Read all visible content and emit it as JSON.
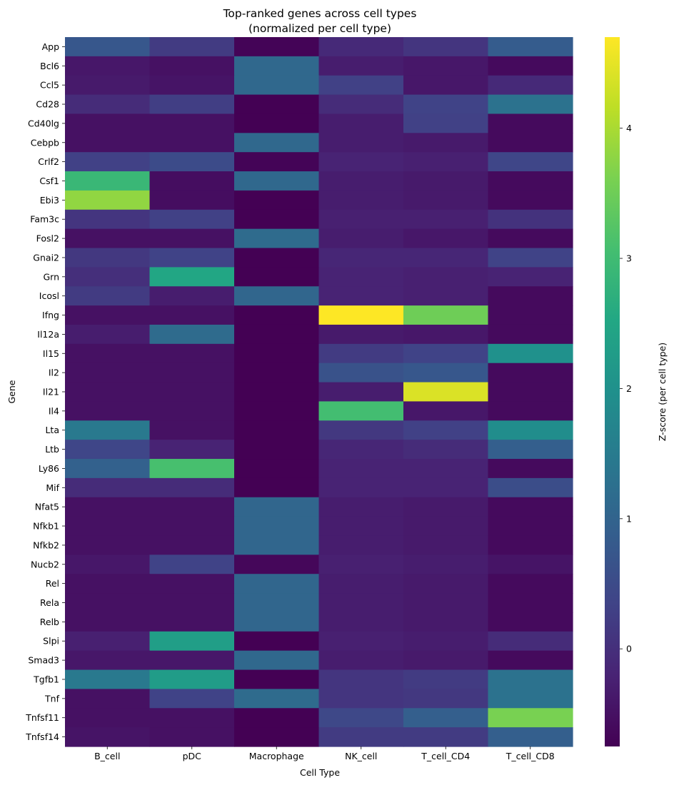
{
  "chart_data": {
    "type": "heatmap",
    "title": "Top-ranked genes across cell types",
    "subtitle": "(normalized per cell type)",
    "xlabel": "Cell Type",
    "ylabel": "Gene",
    "colorbar_label": "Z-score (per cell type)",
    "colormap": "viridis",
    "color_range": [
      -0.75,
      4.7
    ],
    "colorbar_ticks": [
      0,
      1,
      2,
      3,
      4
    ],
    "x_categories": [
      "B_cell",
      "pDC",
      "Macrophage",
      "NK_cell",
      "T_cell_CD4",
      "T_cell_CD8"
    ],
    "y_categories": [
      "App",
      "Bcl6",
      "Ccl5",
      "Cd28",
      "Cd40lg",
      "Cebpb",
      "Crlf2",
      "Csf1",
      "Ebi3",
      "Fam3c",
      "Fosl2",
      "Gnai2",
      "Grn",
      "Icosl",
      "Ifng",
      "Il12a",
      "Il15",
      "Il2",
      "Il21",
      "Il4",
      "Lta",
      "Ltb",
      "Ly86",
      "Mif",
      "Nfat5",
      "Nfkb1",
      "Nfkb2",
      "Nucb2",
      "Rel",
      "Rela",
      "Relb",
      "Slpi",
      "Smad3",
      "Tgfb1",
      "Tnf",
      "Tnfsf11",
      "Tnfsf14"
    ],
    "values": [
      [
        0.75,
        0.2,
        -0.7,
        -0.1,
        0.1,
        0.85
      ],
      [
        -0.4,
        -0.5,
        1.1,
        -0.3,
        -0.4,
        -0.6
      ],
      [
        -0.35,
        -0.45,
        1.1,
        0.3,
        -0.4,
        -0.1
      ],
      [
        -0.05,
        0.25,
        -0.75,
        -0.05,
        0.35,
        1.3
      ],
      [
        -0.5,
        -0.5,
        -0.75,
        -0.3,
        0.3,
        -0.6
      ],
      [
        -0.5,
        -0.5,
        1.1,
        -0.3,
        -0.35,
        -0.6
      ],
      [
        0.3,
        0.5,
        -0.7,
        -0.2,
        -0.25,
        0.4
      ],
      [
        2.9,
        -0.55,
        1.1,
        -0.3,
        -0.35,
        -0.6
      ],
      [
        3.8,
        -0.55,
        -0.75,
        -0.3,
        -0.35,
        -0.6
      ],
      [
        0.1,
        0.3,
        -0.75,
        -0.25,
        -0.25,
        0.05
      ],
      [
        -0.5,
        -0.5,
        1.15,
        -0.3,
        -0.4,
        -0.6
      ],
      [
        0.15,
        0.35,
        -0.75,
        -0.15,
        -0.15,
        0.35
      ],
      [
        0.0,
        2.5,
        -0.75,
        -0.2,
        -0.25,
        -0.2
      ],
      [
        0.2,
        -0.3,
        1.05,
        -0.2,
        -0.25,
        -0.6
      ],
      [
        -0.5,
        -0.5,
        -0.75,
        4.7,
        3.5,
        -0.6
      ],
      [
        -0.3,
        1.15,
        -0.75,
        -0.35,
        -0.4,
        -0.6
      ],
      [
        -0.5,
        -0.5,
        -0.75,
        0.2,
        0.35,
        2.0
      ],
      [
        -0.5,
        -0.5,
        -0.75,
        0.65,
        0.75,
        -0.6
      ],
      [
        -0.5,
        -0.5,
        -0.75,
        -0.3,
        4.4,
        -0.6
      ],
      [
        -0.5,
        -0.5,
        -0.75,
        3.05,
        -0.4,
        -0.6
      ],
      [
        1.45,
        -0.5,
        -0.75,
        0.15,
        0.3,
        1.9
      ],
      [
        0.4,
        -0.2,
        -0.75,
        -0.15,
        -0.05,
        0.9
      ],
      [
        0.95,
        3.1,
        -0.75,
        -0.2,
        -0.2,
        -0.6
      ],
      [
        -0.05,
        -0.05,
        -0.75,
        -0.2,
        -0.2,
        0.55
      ],
      [
        -0.5,
        -0.5,
        1.05,
        -0.3,
        -0.35,
        -0.6
      ],
      [
        -0.5,
        -0.5,
        1.05,
        -0.3,
        -0.35,
        -0.6
      ],
      [
        -0.5,
        -0.5,
        1.05,
        -0.3,
        -0.35,
        -0.6
      ],
      [
        -0.4,
        0.35,
        -0.65,
        -0.25,
        -0.3,
        -0.45
      ],
      [
        -0.5,
        -0.5,
        1.05,
        -0.3,
        -0.35,
        -0.6
      ],
      [
        -0.5,
        -0.5,
        1.05,
        -0.3,
        -0.35,
        -0.6
      ],
      [
        -0.5,
        -0.5,
        1.05,
        -0.3,
        -0.35,
        -0.6
      ],
      [
        -0.25,
        2.3,
        -0.75,
        -0.25,
        -0.3,
        -0.05
      ],
      [
        -0.4,
        -0.4,
        1.1,
        -0.3,
        -0.35,
        -0.6
      ],
      [
        1.45,
        2.25,
        -0.75,
        0.1,
        0.2,
        1.3
      ],
      [
        -0.5,
        0.35,
        1.15,
        0.1,
        0.15,
        1.3
      ],
      [
        -0.5,
        -0.5,
        -0.75,
        0.45,
        0.9,
        3.6
      ],
      [
        -0.45,
        -0.5,
        -0.75,
        0.2,
        0.2,
        0.9
      ]
    ]
  }
}
